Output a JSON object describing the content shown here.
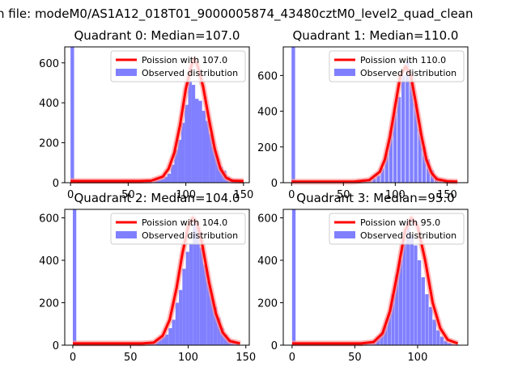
{
  "figure": {
    "suptitle": "n file: modeM0/AS1A12_018T01_9000005874_43480cztM0_level2_quad_clean"
  },
  "colors": {
    "observed": "#8080ff",
    "poisson": "#ff0000",
    "poisson_glow": "#ff9999",
    "axis": "#000000"
  },
  "chart_data": [
    {
      "type": "bar",
      "title": "Quadrant 0: Median=107.0",
      "xlim": [
        -5,
        155
      ],
      "ylim": [
        0,
        680
      ],
      "xticks": [
        0,
        50,
        100,
        150
      ],
      "yticks": [
        0,
        200,
        400,
        600
      ],
      "legend_position": "top-right",
      "legend": [
        "Poission with 107.0",
        "Observed distribution"
      ],
      "bin_width": 3.1,
      "bins_x": [
        0,
        65,
        68,
        72,
        75,
        78,
        81,
        84,
        87,
        90,
        93,
        96,
        99,
        102,
        105,
        108,
        111,
        114,
        117,
        120,
        123,
        126,
        129,
        132,
        135,
        138,
        141,
        144
      ],
      "bins_y": [
        680,
        5,
        10,
        12,
        15,
        20,
        30,
        45,
        90,
        165,
        215,
        300,
        390,
        510,
        490,
        420,
        410,
        360,
        310,
        245,
        180,
        120,
        80,
        60,
        30,
        20,
        10,
        5
      ],
      "poisson_x": [
        0,
        60,
        70,
        80,
        85,
        90,
        95,
        100,
        105,
        107,
        110,
        115,
        120,
        125,
        130,
        135,
        140,
        150
      ],
      "poisson_y": [
        8,
        8,
        10,
        30,
        70,
        150,
        290,
        470,
        590,
        620,
        590,
        480,
        320,
        170,
        70,
        25,
        10,
        8
      ]
    },
    {
      "type": "bar",
      "title": "Quadrant 1: Median=110.0",
      "xlim": [
        -8,
        170
      ],
      "ylim": [
        0,
        760
      ],
      "xticks": [
        0,
        50,
        100,
        150
      ],
      "yticks": [
        0,
        200,
        400,
        600
      ],
      "legend_position": "top-right",
      "legend": [
        "Poission with 110.0",
        "Observed distribution"
      ],
      "bin_width": 3.4,
      "bins_x": [
        0,
        70,
        74,
        78,
        82,
        86,
        90,
        94,
        98,
        102,
        106,
        110,
        114,
        118,
        122,
        126,
        130,
        134,
        138,
        142,
        146
      ],
      "bins_y": [
        760,
        8,
        15,
        25,
        40,
        80,
        160,
        290,
        400,
        480,
        600,
        680,
        560,
        440,
        300,
        200,
        130,
        70,
        35,
        15,
        8
      ],
      "poisson_x": [
        0,
        60,
        75,
        85,
        90,
        95,
        100,
        105,
        110,
        115,
        120,
        125,
        130,
        135,
        140,
        150,
        160
      ],
      "poisson_y": [
        6,
        6,
        15,
        60,
        130,
        260,
        430,
        600,
        650,
        600,
        440,
        270,
        130,
        55,
        20,
        8,
        6
      ]
    },
    {
      "type": "bar",
      "title": "Quadrant 2: Median=104.0",
      "xlim": [
        -7,
        153
      ],
      "ylim": [
        0,
        640
      ],
      "xticks": [
        0,
        50,
        100,
        150
      ],
      "yticks": [
        0,
        200,
        400,
        600
      ],
      "legend_position": "top-right",
      "legend": [
        "Poission with 104.0",
        "Observed distribution"
      ],
      "bin_width": 3.0,
      "bins_x": [
        0,
        65,
        68,
        71,
        74,
        77,
        80,
        83,
        86,
        89,
        92,
        95,
        98,
        101,
        104,
        107,
        110,
        113,
        116,
        119,
        122,
        125,
        128,
        131,
        134,
        137,
        140
      ],
      "bins_y": [
        640,
        5,
        10,
        20,
        30,
        40,
        50,
        80,
        120,
        200,
        260,
        360,
        440,
        480,
        600,
        560,
        460,
        380,
        300,
        230,
        180,
        130,
        80,
        50,
        30,
        15,
        8
      ],
      "poisson_x": [
        0,
        60,
        70,
        78,
        84,
        90,
        95,
        100,
        104,
        108,
        112,
        118,
        124,
        130,
        136,
        145
      ],
      "poisson_y": [
        8,
        8,
        12,
        45,
        120,
        270,
        430,
        560,
        600,
        570,
        480,
        300,
        150,
        60,
        20,
        8
      ]
    },
    {
      "type": "bar",
      "title": "Quadrant 3: Median=95.0",
      "xlim": [
        -7,
        140
      ],
      "ylim": [
        0,
        640
      ],
      "xticks": [
        0,
        50,
        100
      ],
      "yticks": [
        0,
        200,
        400,
        600
      ],
      "legend_position": "top-right",
      "legend": [
        "Poission with 95.0",
        "Observed distribution"
      ],
      "bin_width": 2.8,
      "bins_x": [
        0,
        58,
        61,
        64,
        67,
        70,
        73,
        76,
        79,
        82,
        85,
        88,
        91,
        94,
        97,
        100,
        103,
        106,
        109,
        112,
        115,
        118,
        121,
        124,
        127,
        130
      ],
      "bins_y": [
        640,
        5,
        12,
        25,
        40,
        60,
        90,
        150,
        240,
        330,
        400,
        480,
        560,
        520,
        470,
        400,
        320,
        240,
        180,
        120,
        70,
        40,
        20,
        10,
        5,
        3
      ],
      "poisson_x": [
        0,
        55,
        65,
        72,
        78,
        84,
        90,
        95,
        100,
        106,
        112,
        118,
        124,
        132
      ],
      "poisson_y": [
        8,
        8,
        15,
        55,
        160,
        340,
        540,
        600,
        560,
        400,
        200,
        80,
        25,
        8
      ]
    }
  ]
}
